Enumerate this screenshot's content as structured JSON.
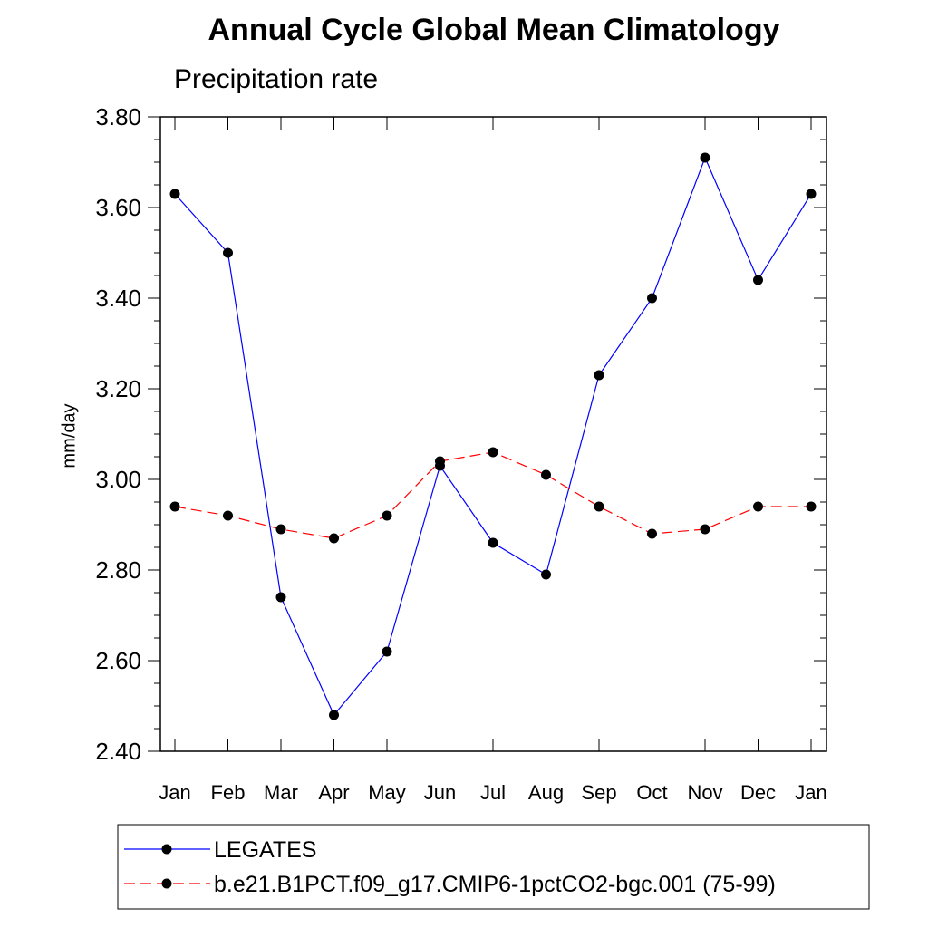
{
  "chart_data": {
    "type": "line",
    "title": "Annual Cycle Global Mean Climatology",
    "subtitle": "Precipitation rate",
    "xlabel": "",
    "ylabel": "mm/day",
    "categories": [
      "Jan",
      "Feb",
      "Mar",
      "Apr",
      "May",
      "Jun",
      "Jul",
      "Aug",
      "Sep",
      "Oct",
      "Nov",
      "Dec",
      "Jan"
    ],
    "ylim": [
      2.4,
      3.8
    ],
    "yticks": [
      "2.40",
      "2.60",
      "2.80",
      "3.00",
      "3.20",
      "3.40",
      "3.60",
      "3.80"
    ],
    "grid": false,
    "legend_position": "bottom",
    "series": [
      {
        "name": "LEGATES",
        "color": "#0000ff",
        "dash": "solid",
        "marker": "filled-circle",
        "values": [
          3.63,
          3.5,
          2.74,
          2.48,
          2.62,
          3.03,
          2.86,
          2.79,
          3.23,
          3.4,
          3.71,
          3.44,
          3.63
        ]
      },
      {
        "name": "b.e21.B1PCT.f09_g17.CMIP6-1pctCO2-bgc.001 (75-99)",
        "color": "#ff0000",
        "dash": "dashed",
        "marker": "filled-circle",
        "values": [
          2.94,
          2.92,
          2.89,
          2.87,
          2.92,
          3.04,
          3.06,
          3.01,
          2.94,
          2.88,
          2.89,
          2.94,
          2.94
        ]
      }
    ]
  }
}
